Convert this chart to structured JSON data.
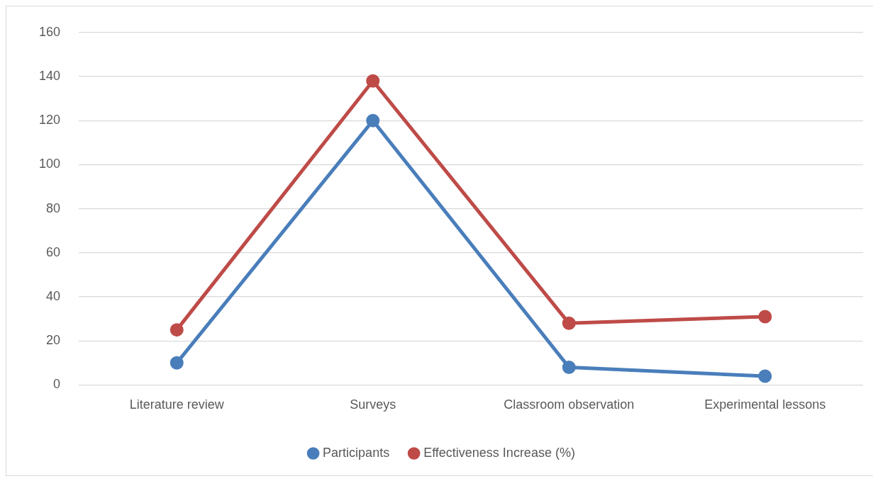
{
  "chart_data": {
    "type": "line",
    "categories": [
      "Literature review",
      "Surveys",
      "Classroom observation",
      "Experimental lessons"
    ],
    "series": [
      {
        "name": "Participants",
        "color": "#4a7ebb",
        "values": [
          10,
          120,
          8,
          4
        ]
      },
      {
        "name": "Effectiveness Increase (%)",
        "color": "#be4b48",
        "values": [
          25,
          138,
          28,
          31
        ]
      }
    ],
    "ylim": [
      0,
      160
    ],
    "yticks": [
      0,
      20,
      40,
      60,
      80,
      100,
      120,
      140,
      160
    ],
    "grid": "y",
    "legend": "bottom",
    "marker": "circle",
    "line_style": "solid"
  }
}
